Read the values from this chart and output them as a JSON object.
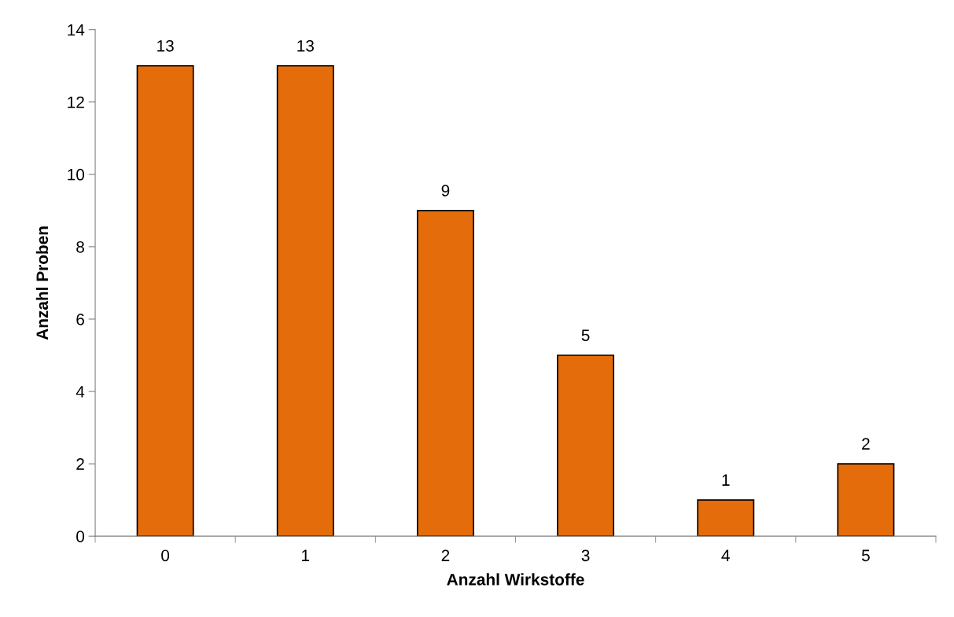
{
  "chart_data": {
    "type": "bar",
    "xlabel": "Anzahl Wirkstoffe",
    "ylabel": "Anzahl Proben",
    "categories": [
      "0",
      "1",
      "2",
      "3",
      "4",
      "5"
    ],
    "values": [
      13,
      13,
      9,
      5,
      1,
      2
    ],
    "color": "#e46c0a",
    "ylim": [
      0,
      14
    ],
    "yticks": [
      0,
      2,
      4,
      6,
      8,
      10,
      12,
      14
    ],
    "grid": false,
    "data_labels": true
  }
}
